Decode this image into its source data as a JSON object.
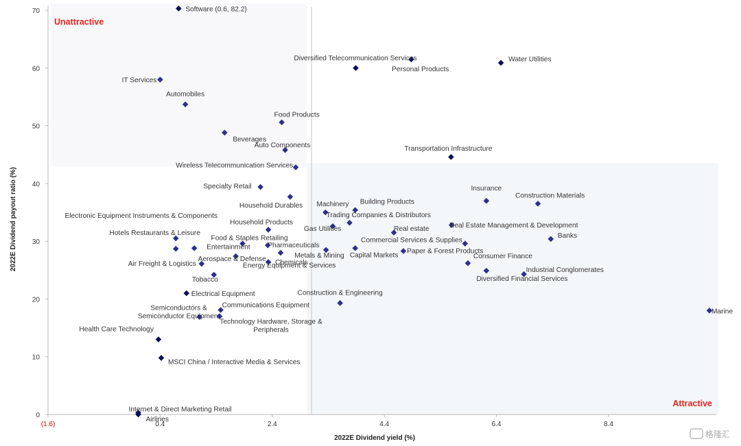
{
  "chart_data": {
    "type": "scatter",
    "xlabel": "2022E Dividend yield (%)",
    "ylabel": "2022E Dividend payout ratio (%)",
    "xlim": [
      -1.6,
      10.2
    ],
    "ylim": [
      0,
      70
    ],
    "x_ticks": [
      "(1.6)",
      "0.4",
      "2.4",
      "4.4",
      "6.4",
      "8.4"
    ],
    "y_ticks": [
      "0",
      "10",
      "20",
      "30",
      "40",
      "50",
      "60",
      "70"
    ],
    "quadrant_split": {
      "x": 3.1,
      "y": 43.5
    },
    "quadrant_labels": {
      "top_left": "Unattractive",
      "bottom_right": "Attractive"
    },
    "points": [
      {
        "label": "Software (0.6, 82.2)",
        "x": 0.73,
        "y": 70.3,
        "dark": true
      },
      {
        "label": "IT Services",
        "x": 0.4,
        "y": 58.0,
        "dark": false
      },
      {
        "label": "Automobiles",
        "x": 0.85,
        "y": 53.7,
        "dark": false
      },
      {
        "label": "Beverages",
        "x": 1.55,
        "y": 48.8,
        "dark": false
      },
      {
        "label": "Food Products",
        "x": 2.57,
        "y": 50.6,
        "dark": false
      },
      {
        "label": "Auto Components",
        "x": 2.63,
        "y": 45.8,
        "dark": false
      },
      {
        "label": "Wireless Telecommunication Services",
        "x": 2.82,
        "y": 42.8,
        "dark": false
      },
      {
        "label": "Diversified Telecommunication Services",
        "x": 4.88,
        "y": 61.5,
        "dark": true
      },
      {
        "label": "Personal Products",
        "x": 3.89,
        "y": 60.0,
        "dark": true
      },
      {
        "label": "Water Utilities",
        "x": 6.48,
        "y": 60.9,
        "dark": true
      },
      {
        "label": "Transportation Infrastructure",
        "x": 5.59,
        "y": 44.6,
        "dark": true
      },
      {
        "label": "Specialty Retail",
        "x": 2.19,
        "y": 39.4,
        "dark": false
      },
      {
        "label": "Household Durables",
        "x": 2.72,
        "y": 37.7,
        "dark": false
      },
      {
        "label": "Machinery",
        "x": 3.35,
        "y": 35.0,
        "dark": false
      },
      {
        "label": "Building Products",
        "x": 3.88,
        "y": 35.4,
        "dark": false
      },
      {
        "label": "Trading Companies & Distributors",
        "x": 3.78,
        "y": 33.2,
        "dark": false
      },
      {
        "label": "Gas Utilities",
        "x": 3.48,
        "y": 32.6,
        "dark": false
      },
      {
        "label": "Real estate",
        "x": 4.57,
        "y": 31.5,
        "dark": false
      },
      {
        "label": "Insurance",
        "x": 6.22,
        "y": 37.0,
        "dark": false
      },
      {
        "label": "Construction Materials",
        "x": 7.14,
        "y": 36.5,
        "dark": false
      },
      {
        "label": "Real Estate Management & Development",
        "x": 5.6,
        "y": 32.8,
        "dark": false
      },
      {
        "label": "Banks",
        "x": 7.37,
        "y": 30.4,
        "dark": false
      },
      {
        "label": "Commercial Services & Supplies",
        "x": 5.84,
        "y": 29.6,
        "dark": false
      },
      {
        "label": "Paper & Forest Products",
        "x": 4.74,
        "y": 28.3,
        "dark": false
      },
      {
        "label": "Capital Markets",
        "x": 3.88,
        "y": 28.8,
        "dark": false
      },
      {
        "label": "Metals & Mining",
        "x": 3.36,
        "y": 28.5,
        "dark": false
      },
      {
        "label": "Consumer Finance",
        "x": 5.89,
        "y": 26.2,
        "dark": false
      },
      {
        "label": "Diversified Financial Services",
        "x": 6.22,
        "y": 24.9,
        "dark": false
      },
      {
        "label": "Industrial Conglomerates",
        "x": 6.89,
        "y": 24.3,
        "dark": false
      },
      {
        "label": "Electronic Equipment Instruments & Components",
        "x": 0.68,
        "y": 28.7,
        "dark": false
      },
      {
        "label": "Hotels Restaurants & Leisure",
        "x": 0.68,
        "y": 30.5,
        "dark": false
      },
      {
        "label": "Household Products",
        "x": 2.33,
        "y": 32.0,
        "dark": false
      },
      {
        "label": "Food & Staples Retailing",
        "x": 1.87,
        "y": 29.6,
        "dark": false
      },
      {
        "label": "Entertainment",
        "x": 1.01,
        "y": 28.8,
        "dark": false
      },
      {
        "label": "Pharmaceuticals",
        "x": 2.32,
        "y": 29.3,
        "dark": false
      },
      {
        "label": "Aerospace & Defense",
        "x": 1.75,
        "y": 27.4,
        "dark": false
      },
      {
        "label": "Chemicals",
        "x": 2.55,
        "y": 28.0,
        "dark": false
      },
      {
        "label": "Energy Equipment & Services",
        "x": 2.33,
        "y": 26.4,
        "dark": false
      },
      {
        "label": "Air Freight & Logistics",
        "x": 1.14,
        "y": 26.1,
        "dark": false
      },
      {
        "label": "Tobacco",
        "x": 1.36,
        "y": 24.2,
        "dark": false
      },
      {
        "label": "Electrical Equipment",
        "x": 0.87,
        "y": 21.0,
        "dark": true
      },
      {
        "label": "Construction & Engineering",
        "x": 3.61,
        "y": 19.3,
        "dark": false
      },
      {
        "label": "Communications Equipment",
        "x": 1.48,
        "y": 18.1,
        "dark": false
      },
      {
        "label": "Semiconductors & Semiconductor Equipment",
        "x": 1.1,
        "y": 16.9,
        "dark": false
      },
      {
        "label": "Technology Hardware, Storage & Peripherals",
        "x": 1.46,
        "y": 17.0,
        "dark": false
      },
      {
        "label": "Marine",
        "x": 10.2,
        "y": 18.0,
        "dark": false
      },
      {
        "label": "Health Care Technology",
        "x": 0.37,
        "y": 13.0,
        "dark": true
      },
      {
        "label": "MSCI China  /  Interactive Media & Services",
        "x": 0.42,
        "y": 9.8,
        "dark": true
      },
      {
        "label": "Internet & Direct Marketing Retail",
        "x": 0.01,
        "y": 0.3,
        "dark": true
      },
      {
        "label": "Airlines",
        "x": 0.01,
        "y": 0.0,
        "dark": true
      }
    ]
  },
  "watermark": "格隆汇",
  "colors": {
    "dark_marker": "#0d0d5e",
    "light_marker": "#2e2e8c",
    "quadrant_label": "#e8211f",
    "shade": "#f4f7fa"
  }
}
